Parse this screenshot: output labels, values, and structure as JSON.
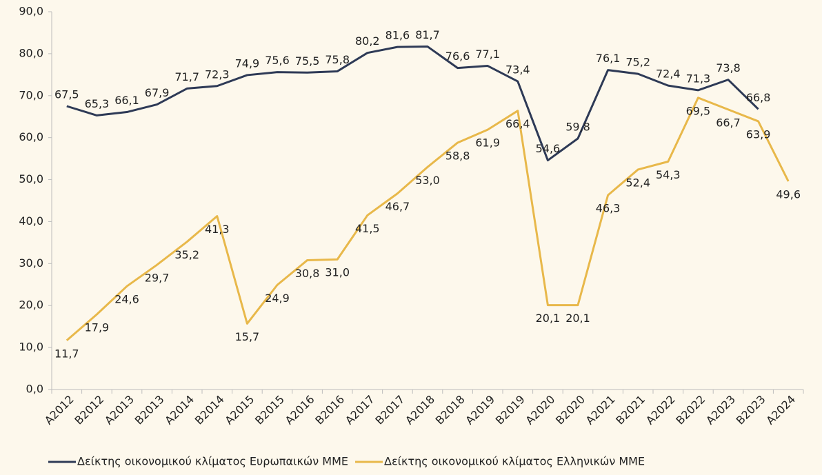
{
  "chart_data": {
    "type": "line",
    "categories": [
      "A2012",
      "B2012",
      "A2013",
      "B2013",
      "A2014",
      "B2014",
      "A2015",
      "B2015",
      "A2016",
      "B2016",
      "A2017",
      "B2017",
      "A2018",
      "B2018",
      "A2019",
      "B2019",
      "A2020",
      "B2020",
      "A2021",
      "B2021",
      "A2022",
      "B2022",
      "A2023",
      "B2023",
      "A2024"
    ],
    "series": [
      {
        "name": "Δείκτης οικονομικού κλίματος Ευρωπαικών ΜΜΕ",
        "color": "#2e3a56",
        "values": [
          67.5,
          65.3,
          66.1,
          67.9,
          71.7,
          72.3,
          74.9,
          75.6,
          75.5,
          75.8,
          80.2,
          81.6,
          81.7,
          76.6,
          77.1,
          73.4,
          54.6,
          59.8,
          76.1,
          75.2,
          72.4,
          71.3,
          73.8,
          66.8,
          null
        ],
        "value_labels": [
          "67,5",
          "65,3",
          "66,1",
          "67,9",
          "71,7",
          "72,3",
          "74,9",
          "75,6",
          "75,5",
          "75,8",
          "80,2",
          "81,6",
          "81,7",
          "76,6",
          "77,1",
          "73,4",
          "54,6",
          "59,8",
          "76,1",
          "75,2",
          "72,4",
          "71,3",
          "73,8",
          "66,8",
          null
        ]
      },
      {
        "name": "Δείκτης οικονομικού κλίματος Ελληνικών ΜΜΕ",
        "color": "#e8b84a",
        "values": [
          11.7,
          17.9,
          24.6,
          29.7,
          35.2,
          41.3,
          15.7,
          24.9,
          30.8,
          31.0,
          41.5,
          46.7,
          53.0,
          58.8,
          61.9,
          66.4,
          20.1,
          20.1,
          46.3,
          52.4,
          54.3,
          69.5,
          66.7,
          63.9,
          49.6
        ],
        "value_labels": [
          "11,7",
          "17,9",
          "24,6",
          "29,7",
          "35,2",
          "41,3",
          "15,7",
          "24,9",
          "30,8",
          "31,0",
          "41,5",
          "46,7",
          "53,0",
          "58,8",
          "61,9",
          "66,4",
          "20,1",
          "20,1",
          "46,3",
          "52,4",
          "54,3",
          "69,5",
          "66,7",
          "63,9",
          "49,6"
        ]
      }
    ],
    "ylim": [
      0,
      90
    ],
    "yticks": [
      {
        "value": 0,
        "label": "0,0"
      },
      {
        "value": 10,
        "label": "10,0"
      },
      {
        "value": 20,
        "label": "20,0"
      },
      {
        "value": 30,
        "label": "30,0"
      },
      {
        "value": 40,
        "label": "40,0"
      },
      {
        "value": 50,
        "label": "50,0"
      },
      {
        "value": 60,
        "label": "60,0"
      },
      {
        "value": 70,
        "label": "70,0"
      },
      {
        "value": 80,
        "label": "80,0"
      },
      {
        "value": 90,
        "label": "90,0"
      }
    ],
    "grid": false,
    "legend": "bottom"
  }
}
